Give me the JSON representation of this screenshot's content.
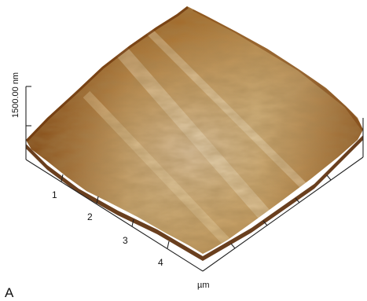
{
  "figure": {
    "panel_label": "A",
    "z_scale_label": "1500.00 nm",
    "x_unit_label": "µm",
    "x_tick_labels": [
      "1",
      "2",
      "3",
      "4"
    ]
  },
  "colors": {
    "surface_light": "#f2e6c0",
    "surface_mid": "#c9a255",
    "surface_dark": "#8a4a12",
    "surface_edge": "#5a2a06",
    "axis": "#222222"
  }
}
